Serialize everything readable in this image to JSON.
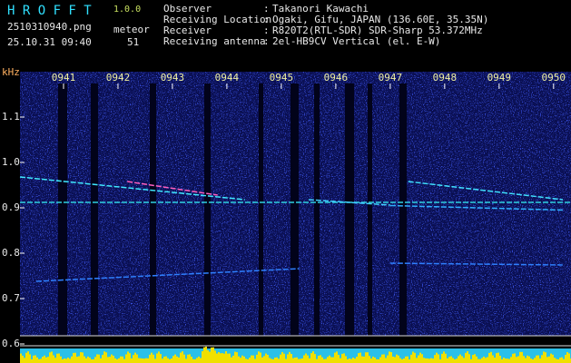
{
  "header": {
    "app": "H R O F F T",
    "version": "1.0.0",
    "file": "2510310940.png",
    "count_label": "meteor",
    "timestamp": "25.10.31 09:40",
    "count": 51,
    "info": [
      {
        "label": "Observer",
        "sep": ":",
        "value": "Takanori Kawachi"
      },
      {
        "label": "Receiving Location",
        "sep": ":",
        "value": "Ogaki, Gifu, JAPAN (136.60E, 35.35N)"
      },
      {
        "label": "Receiver",
        "sep": ":",
        "value": "R820T2(RTL-SDR) SDR-Sharp 53.372MHz"
      },
      {
        "label": "Receiving antenna",
        "sep": ":",
        "value": "2el-HB9CV Vertical (el. E-W)"
      }
    ]
  },
  "chart_data": {
    "type": "spectrogram",
    "y_label": "kHz",
    "xlim": [
      0.2,
      10.32
    ],
    "xticks": [
      {
        "value": 1,
        "label": "0941"
      },
      {
        "value": 2,
        "label": "0942"
      },
      {
        "value": 3,
        "label": "0943"
      },
      {
        "value": 4,
        "label": "0944"
      },
      {
        "value": 5,
        "label": "0945"
      },
      {
        "value": 6,
        "label": "0946"
      },
      {
        "value": 7,
        "label": "0947"
      },
      {
        "value": 8,
        "label": "0948"
      },
      {
        "value": 9,
        "label": "0949"
      },
      {
        "value": 10,
        "label": "0950"
      }
    ],
    "ylim": [
      0.58,
      1.2
    ],
    "yticks": [
      1.1,
      {
        "value": 1,
        "label": "1.0"
      },
      0.9,
      0.8,
      0.7,
      0.6
    ],
    "series": [
      {
        "color": "#2fd0e0",
        "x": [
          0.2,
          10.32
        ],
        "values": [
          0.912,
          0.912
        ]
      },
      {
        "color": "#40e8ff",
        "x": [
          0.2,
          4.33
        ],
        "values": [
          0.968,
          0.918
        ]
      },
      {
        "color": "#ff60c0",
        "x": [
          2.17,
          3.83
        ],
        "values": [
          0.958,
          0.928
        ]
      },
      {
        "color": "#40d0ff",
        "x": [
          5.5,
          7.0
        ],
        "values": [
          0.918,
          0.906
        ]
      },
      {
        "color": "#40e0ff",
        "x": [
          7.33,
          10.17
        ],
        "values": [
          0.958,
          0.918
        ]
      },
      {
        "color": "#30b0ff",
        "x": [
          7.0,
          10.2
        ],
        "values": [
          0.905,
          0.895
        ]
      },
      {
        "color": "#2f80ff",
        "x": [
          0.5,
          5.33
        ],
        "values": [
          0.738,
          0.766
        ]
      },
      {
        "color": "#2f80ff",
        "x": [
          7.0,
          10.2
        ],
        "values": [
          0.778,
          0.774
        ]
      }
    ]
  }
}
